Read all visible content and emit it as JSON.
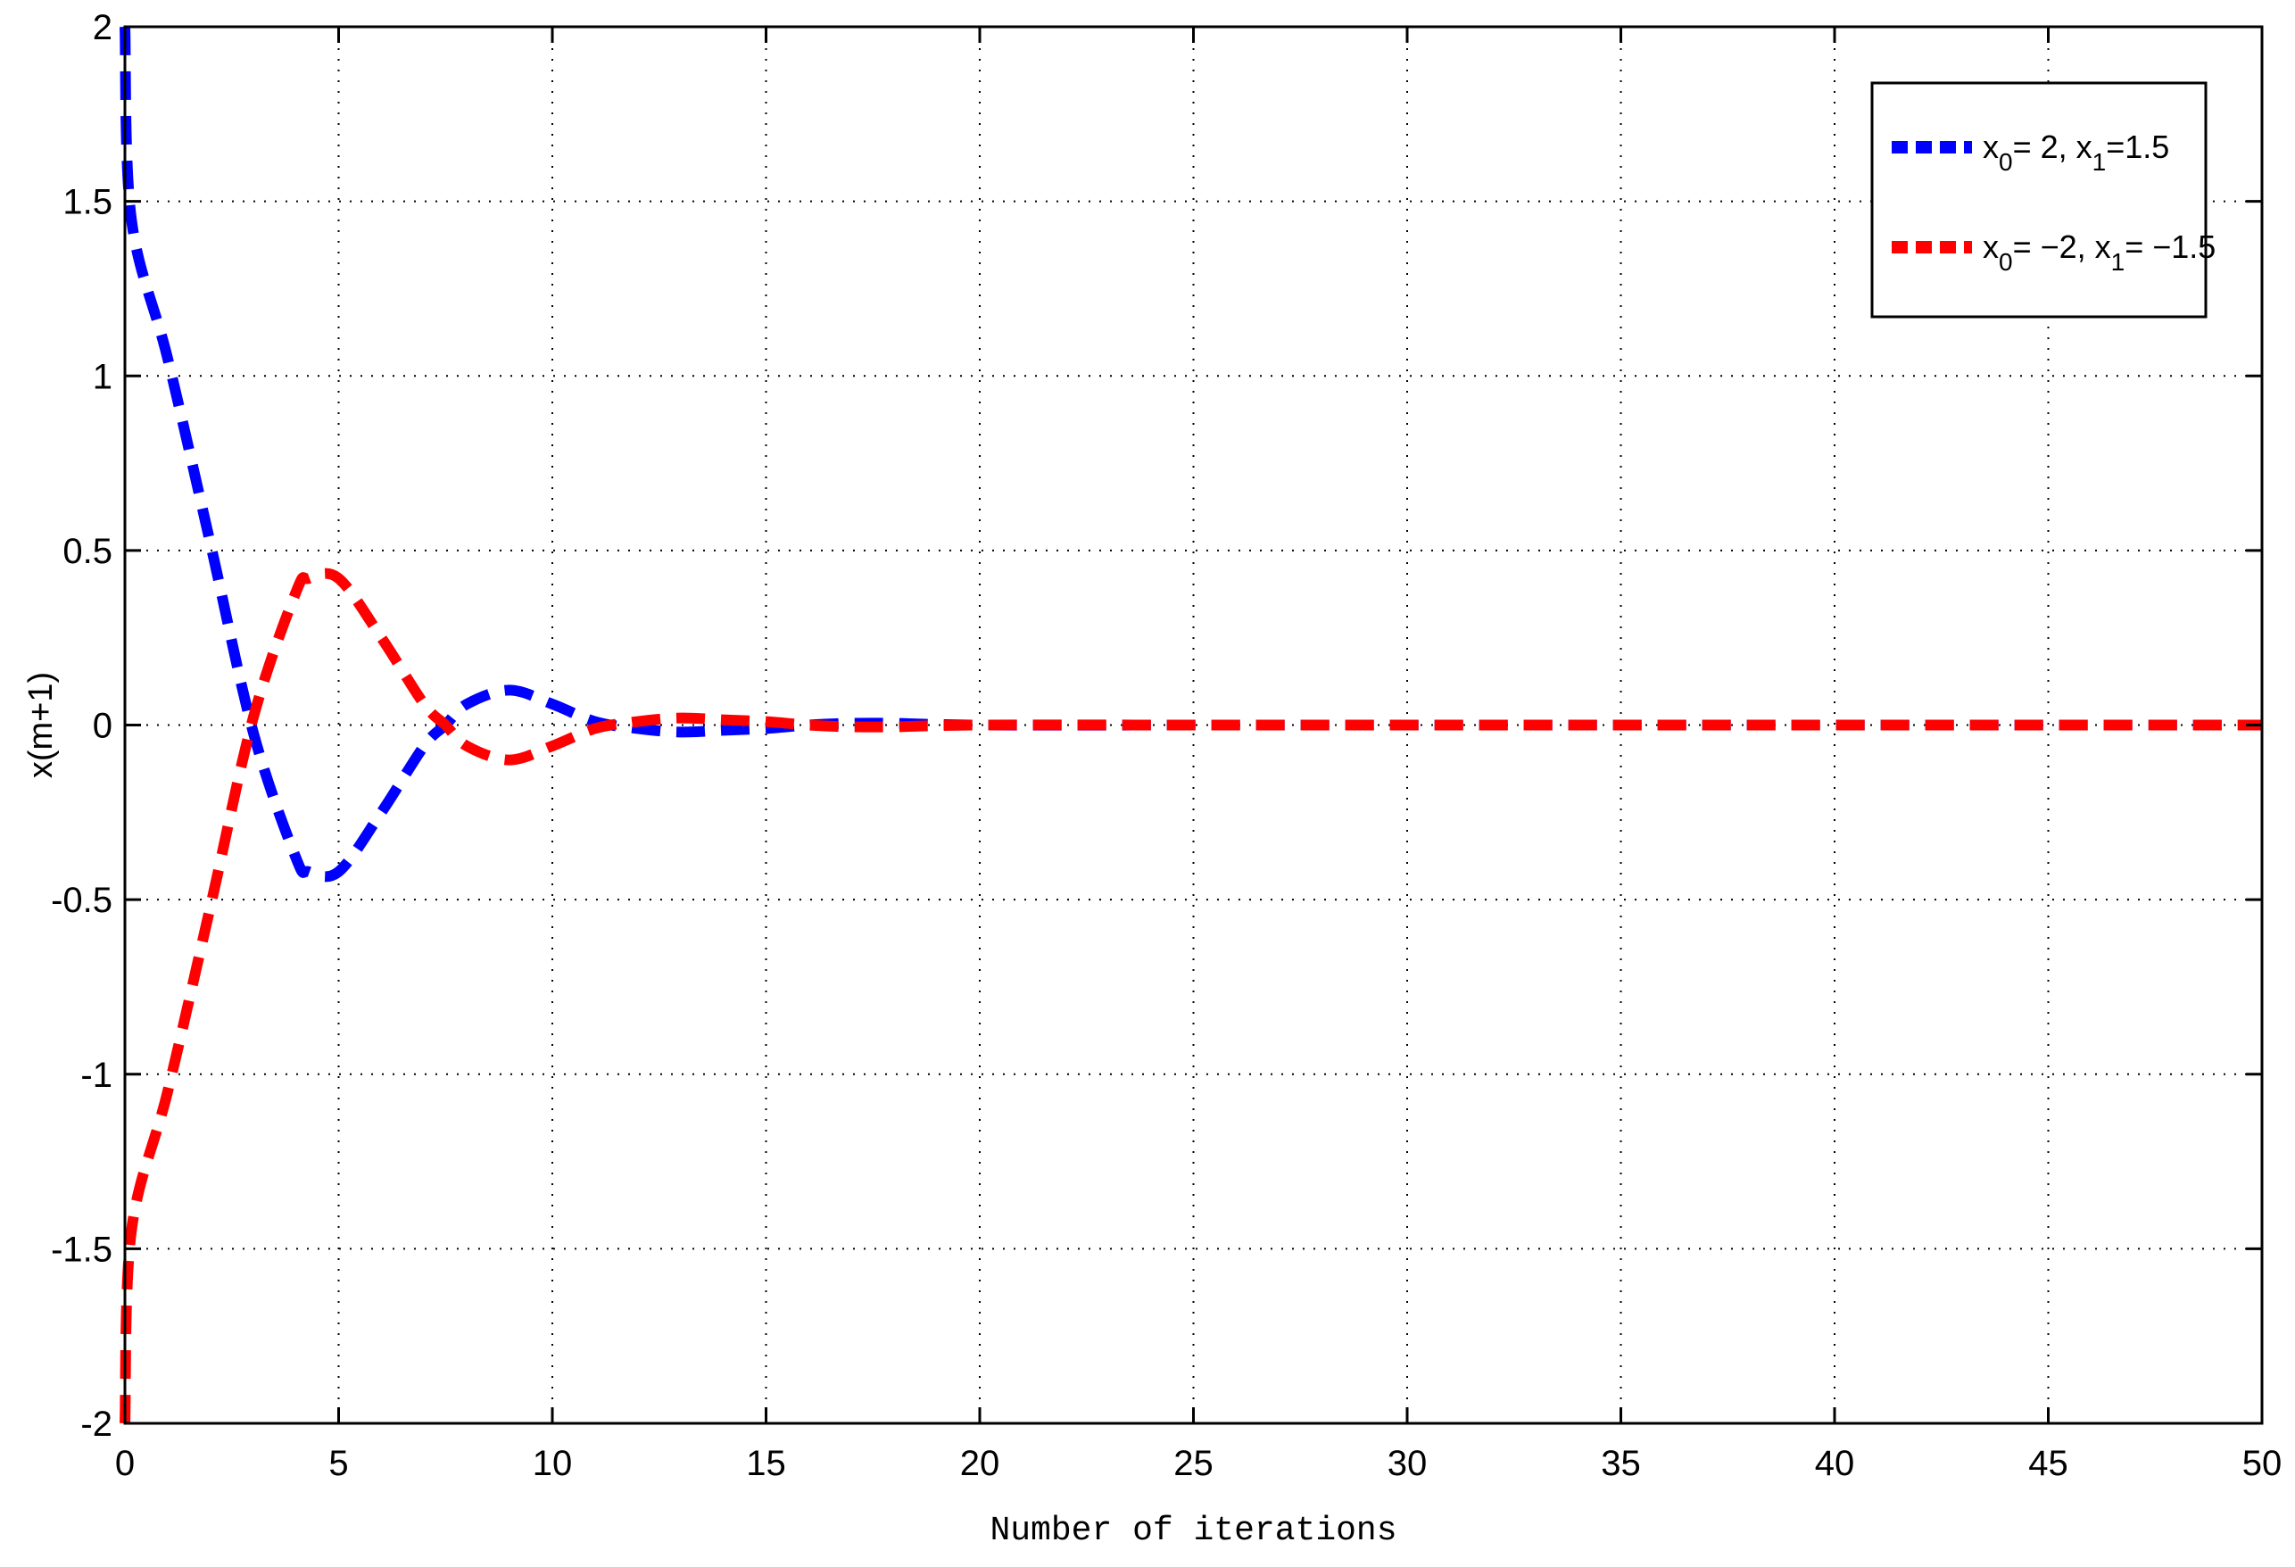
{
  "chart_data": {
    "type": "line",
    "title": "",
    "xlabel": "Number of iterations",
    "ylabel": "x(m+1)",
    "xlim": [
      0,
      50
    ],
    "ylim": [
      -2,
      2
    ],
    "xticks": [
      0,
      5,
      10,
      15,
      20,
      25,
      30,
      35,
      40,
      45,
      50
    ],
    "yticks": [
      -2,
      -1.5,
      -1,
      -0.5,
      0,
      0.5,
      1,
      1.5,
      2
    ],
    "grid": true,
    "legend_position": "top-right",
    "series": [
      {
        "name": "x0=2, x1=1.5",
        "legend": {
          "a": "x",
          "a_sub": "0",
          "b": "= 2, x",
          "b_sub": "1",
          "c": "=1.5"
        },
        "color": "#0000ff",
        "x": [
          0,
          0.15,
          1,
          2,
          3,
          4,
          4.3,
          5,
          6,
          7,
          7.5,
          8,
          9,
          10,
          11,
          12,
          13,
          14,
          15,
          16,
          17,
          18,
          20,
          25,
          30,
          35,
          40,
          45,
          50
        ],
        "y": [
          2,
          1.45,
          1.05,
          0.52,
          -0.02,
          -0.38,
          -0.42,
          -0.42,
          -0.25,
          -0.06,
          0.0,
          0.06,
          0.1,
          0.06,
          0.01,
          -0.01,
          -0.02,
          -0.015,
          -0.01,
          0.0,
          0.005,
          0.005,
          0.0,
          0.0,
          0.0,
          0.0,
          0.0,
          0.0,
          0.0
        ]
      },
      {
        "name": "x0=-2, x1=-1.5",
        "legend": {
          "a": "x",
          "a_sub": "0",
          "b": "= −2, x",
          "b_sub": "1",
          "c": "= −1.5"
        },
        "color": "#ff0000",
        "x": [
          0,
          0.15,
          1,
          2,
          3,
          4,
          4.3,
          5,
          6,
          7,
          7.5,
          8,
          9,
          10,
          11,
          12,
          13,
          14,
          15,
          16,
          17,
          18,
          20,
          25,
          30,
          35,
          40,
          45,
          50
        ],
        "y": [
          -2,
          -1.45,
          -1.05,
          -0.52,
          0.02,
          0.38,
          0.42,
          0.42,
          0.25,
          0.06,
          0.0,
          -0.06,
          -0.1,
          -0.06,
          -0.01,
          0.01,
          0.02,
          0.015,
          0.01,
          0.0,
          -0.005,
          -0.005,
          0.0,
          0.0,
          0.0,
          0.0,
          0.0,
          0.0,
          0.0
        ]
      }
    ]
  }
}
